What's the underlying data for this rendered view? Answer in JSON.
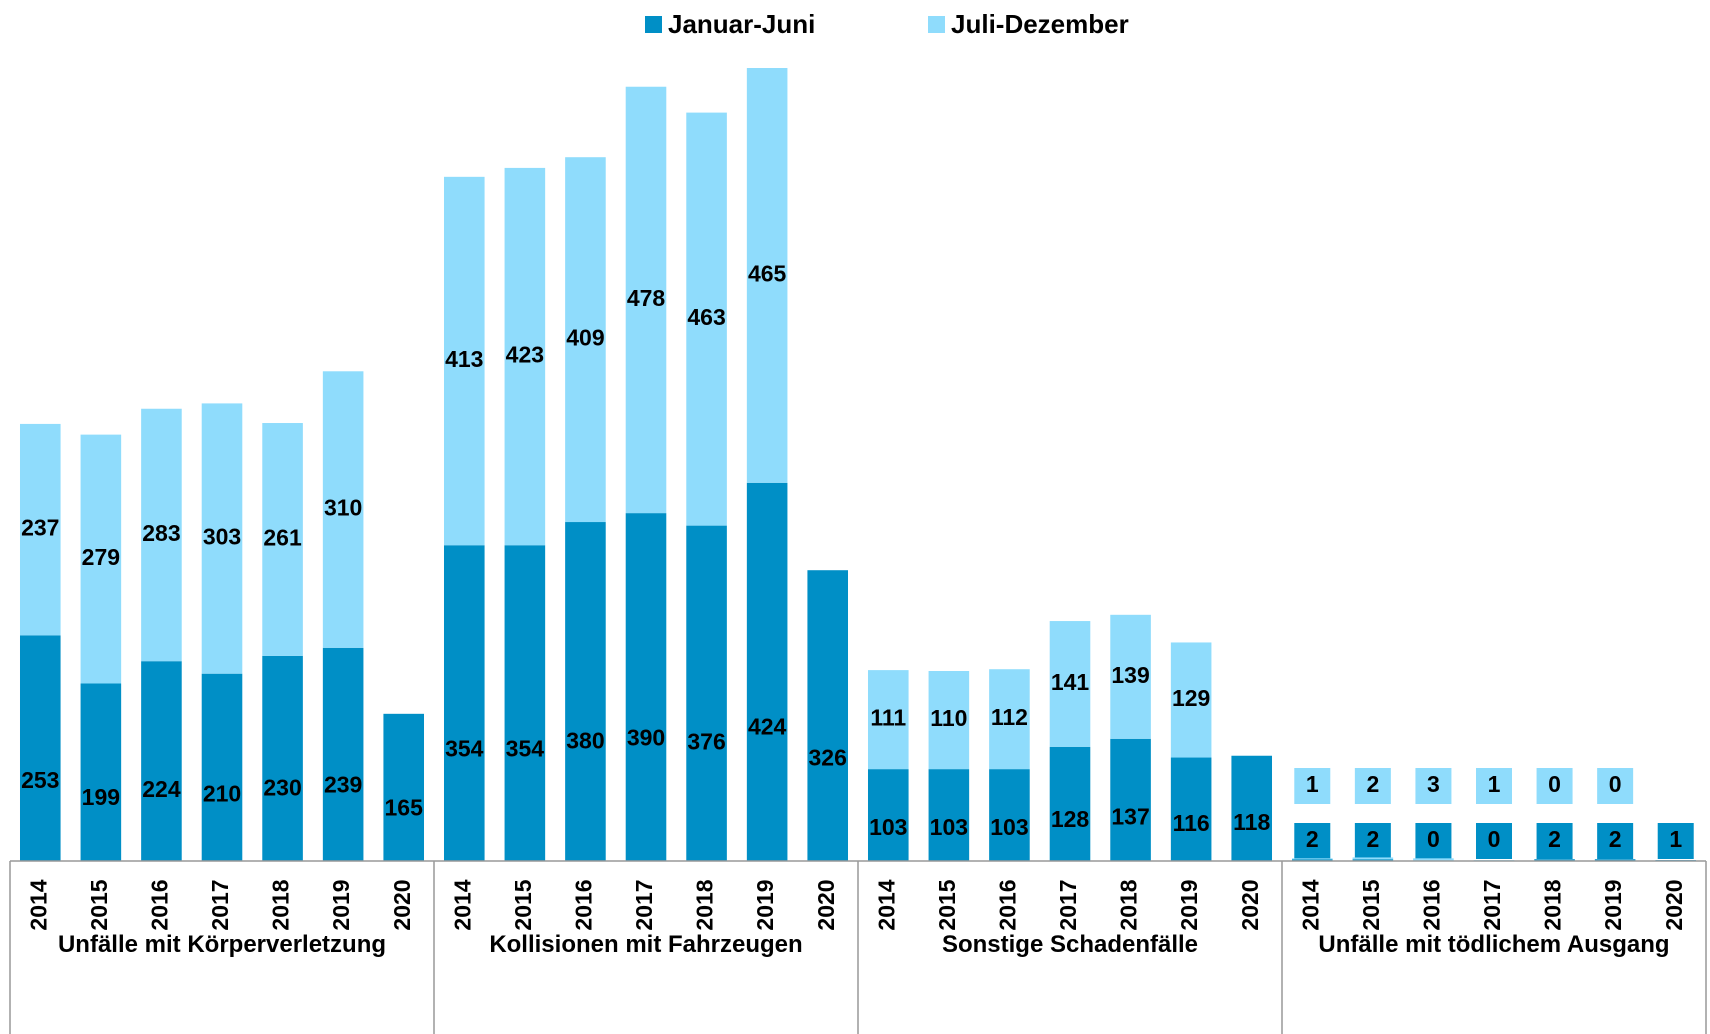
{
  "chart_data": {
    "type": "stacked_bar",
    "categories": [
      "2014",
      "2015",
      "2016",
      "2017",
      "2018",
      "2019",
      "2020",
      "2014",
      "2015",
      "2016",
      "2017",
      "2018",
      "2019",
      "2020",
      "2014",
      "2015",
      "2016",
      "2017",
      "2018",
      "2019",
      "2020",
      "2014",
      "2015",
      "2016",
      "2017",
      "2018",
      "2019",
      "2020"
    ],
    "groups": [
      "Unfälle mit Körperverletzung",
      "Kollisionen mit Fahrzeugen",
      "Sonstige Schadenfälle",
      "Unfälle mit tödlichem Ausgang"
    ],
    "series": [
      {
        "name": "Januar-Juni",
        "color": "#008fc6",
        "values": [
          253,
          199,
          224,
          210,
          230,
          239,
          165,
          354,
          354,
          380,
          390,
          376,
          424,
          326,
          103,
          103,
          103,
          128,
          137,
          116,
          118,
          2,
          2,
          0,
          0,
          2,
          2,
          1
        ]
      },
      {
        "name": "Juli-Dezember",
        "color": "#8fdcfc",
        "values": [
          237,
          279,
          283,
          303,
          261,
          310,
          null,
          413,
          423,
          409,
          478,
          463,
          465,
          null,
          111,
          110,
          112,
          141,
          139,
          129,
          null,
          1,
          2,
          3,
          1,
          0,
          0,
          null
        ]
      }
    ],
    "legend": "top"
  }
}
